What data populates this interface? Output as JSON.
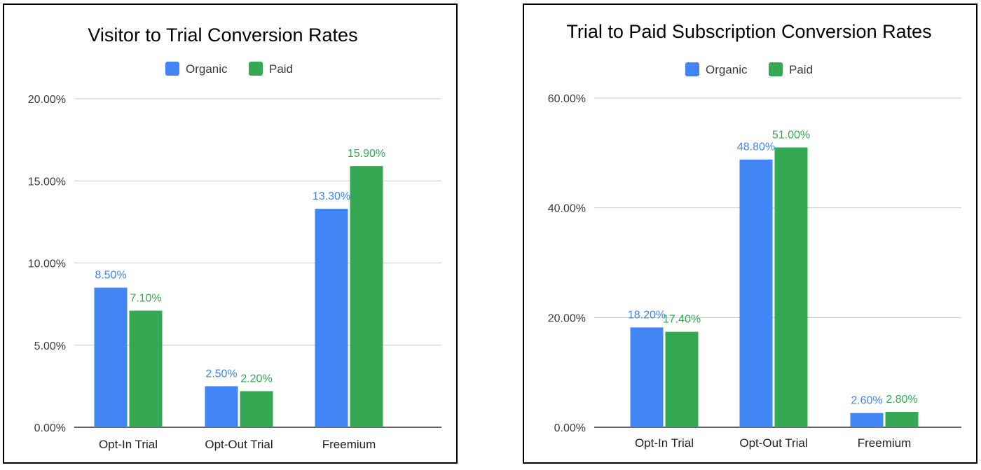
{
  "chart_data": [
    {
      "type": "bar",
      "title": "Visitor to Trial Conversion Rates",
      "categories": [
        "Opt-In Trial",
        "Opt-Out Trial",
        "Freemium"
      ],
      "series": [
        {
          "name": "Organic",
          "color": "#4285f4",
          "values": [
            8.5,
            2.5,
            13.3
          ],
          "labels": [
            "8.50%",
            "2.50%",
            "13.30%"
          ]
        },
        {
          "name": "Paid",
          "color": "#34a853",
          "values": [
            7.1,
            2.2,
            15.9
          ],
          "labels": [
            "7.10%",
            "2.20%",
            "15.90%"
          ]
        }
      ],
      "ylim": [
        0,
        20
      ],
      "yticks": [
        0,
        5,
        10,
        15,
        20
      ],
      "ytick_labels": [
        "0.00%",
        "5.00%",
        "10.00%",
        "15.00%",
        "20.00%"
      ],
      "xlabel": "",
      "ylabel": "",
      "legend": "top"
    },
    {
      "type": "bar",
      "title": "Trial to Paid Subscription Conversion Rates",
      "categories": [
        "Opt-In Trial",
        "Opt-Out Trial",
        "Freemium"
      ],
      "series": [
        {
          "name": "Organic",
          "color": "#4285f4",
          "values": [
            18.2,
            48.8,
            2.6
          ],
          "labels": [
            "18.20%",
            "48.80%",
            "2.60%"
          ]
        },
        {
          "name": "Paid",
          "color": "#34a853",
          "values": [
            17.4,
            51.0,
            2.8
          ],
          "labels": [
            "17.40%",
            "51.00%",
            "2.80%"
          ]
        }
      ],
      "ylim": [
        0,
        60
      ],
      "yticks": [
        0,
        20,
        40,
        60
      ],
      "ytick_labels": [
        "0.00%",
        "20.00%",
        "40.00%",
        "60.00%"
      ],
      "xlabel": "",
      "ylabel": "",
      "legend": "top"
    }
  ]
}
